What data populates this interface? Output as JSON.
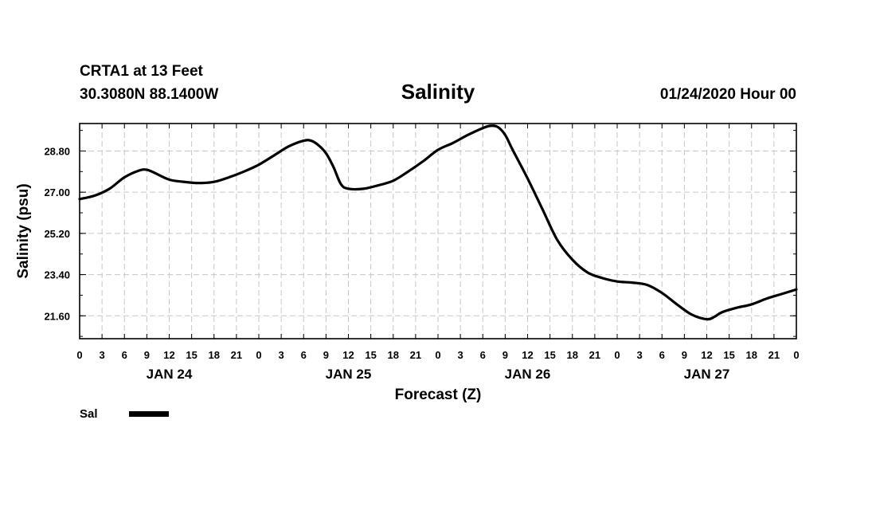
{
  "header": {
    "station": "CRTA1 at 13 Feet",
    "coords": "30.3080N 88.1400W",
    "title": "Salinity",
    "run": "01/24/2020 Hour 00"
  },
  "legend": {
    "label": "Sal",
    "position": "bottom-left",
    "color": "#000000"
  },
  "chart_data": {
    "type": "line",
    "title": "Salinity",
    "xlabel": "Forecast (Z)",
    "ylabel": "Salinity (psu)",
    "xlim": [
      0,
      96
    ],
    "ylim": [
      20.6,
      30.0
    ],
    "yticks": [
      21.6,
      23.4,
      25.2,
      27.0,
      28.8
    ],
    "ytick_labels": [
      "21.60",
      "23.40",
      "25.20",
      "27.00",
      "28.80"
    ],
    "xticks": [
      0,
      3,
      6,
      9,
      12,
      15,
      18,
      21,
      24,
      27,
      30,
      33,
      36,
      39,
      42,
      45,
      48,
      51,
      54,
      57,
      60,
      63,
      66,
      69,
      72,
      75,
      78,
      81,
      84,
      87,
      90,
      93,
      96
    ],
    "xtick_labels": [
      "0",
      "3",
      "6",
      "9",
      "12",
      "15",
      "18",
      "21",
      "0",
      "3",
      "6",
      "9",
      "12",
      "15",
      "18",
      "21",
      "0",
      "3",
      "6",
      "9",
      "12",
      "15",
      "18",
      "21",
      "0",
      "3",
      "6",
      "9",
      "12",
      "15",
      "18",
      "21",
      "0"
    ],
    "day_labels": [
      {
        "label": "JAN 24",
        "at": 12
      },
      {
        "label": "JAN 25",
        "at": 36
      },
      {
        "label": "JAN 26",
        "at": 60
      },
      {
        "label": "JAN 27",
        "at": 84
      }
    ],
    "grid": true,
    "series": [
      {
        "name": "Sal",
        "x": [
          0,
          2,
          4,
          6,
          8,
          9,
          10,
          12,
          14,
          16,
          18,
          20,
          22,
          24,
          26,
          28,
          30,
          31,
          32,
          33,
          34,
          35,
          36,
          38,
          40,
          42,
          44,
          46,
          48,
          50,
          52,
          54,
          55,
          56,
          57,
          58,
          60,
          62,
          64,
          66,
          68,
          70,
          72,
          74,
          76,
          78,
          80,
          82,
          84,
          85,
          86,
          88,
          90,
          92,
          94,
          96
        ],
        "y": [
          26.7,
          26.85,
          27.15,
          27.65,
          27.95,
          27.98,
          27.85,
          27.55,
          27.45,
          27.4,
          27.45,
          27.65,
          27.9,
          28.2,
          28.6,
          29.0,
          29.25,
          29.25,
          29.05,
          28.7,
          28.1,
          27.35,
          27.15,
          27.15,
          27.3,
          27.5,
          27.9,
          28.35,
          28.85,
          29.15,
          29.5,
          29.8,
          29.9,
          29.85,
          29.5,
          28.85,
          27.6,
          26.25,
          24.9,
          24.05,
          23.5,
          23.25,
          23.1,
          23.05,
          22.95,
          22.6,
          22.1,
          21.65,
          21.45,
          21.55,
          21.75,
          21.95,
          22.1,
          22.35,
          22.55,
          22.75
        ]
      }
    ]
  }
}
